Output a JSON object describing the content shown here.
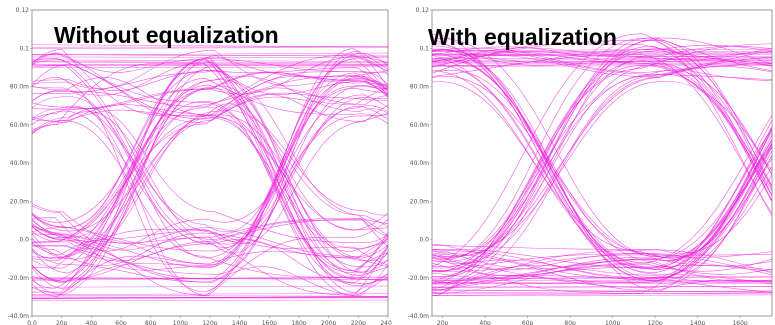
{
  "panels": [
    {
      "title": "Without equalization"
    },
    {
      "title": "With equalization"
    }
  ],
  "colors": {
    "trace": "#ee22dd",
    "frame": "#999999",
    "background": "#ffffff"
  },
  "chart_data": [
    {
      "type": "line",
      "chart_kind": "eye-diagram",
      "title": "Without equalization",
      "xlabel": "",
      "ylabel": "",
      "xlim": [
        0,
        240
      ],
      "ylim": [
        -40,
        120
      ],
      "y_ticks": [
        -40,
        -20,
        0,
        20,
        40,
        60,
        80,
        100,
        120
      ],
      "y_tick_labels": [
        "-40.0m",
        "-20.0m",
        "0.0",
        "20.0m",
        "40.0m",
        "60.0m",
        "80.0m",
        "0.1",
        "0.12"
      ],
      "x_ticks": [
        0,
        20,
        40,
        60,
        80,
        100,
        120,
        140,
        160,
        180,
        200,
        220,
        240
      ],
      "x_tick_labels": [
        "0.0",
        "20p",
        "40p",
        "60p",
        "80p",
        "100p",
        "120p",
        "140p",
        "160p",
        "180p",
        "200p",
        "220p",
        "240p"
      ],
      "unit_interval": 100,
      "crossings_x": [
        20,
        120,
        220
      ],
      "high_level": 95,
      "low_level": -25,
      "crossing_level": 35,
      "eye_open_top": 60,
      "eye_open_bottom": 15,
      "high_spread": [
        60,
        100
      ],
      "low_spread": [
        -30,
        15
      ],
      "grid": false
    },
    {
      "type": "line",
      "chart_kind": "eye-diagram",
      "title": "With equalization",
      "xlabel": "",
      "ylabel": "",
      "xlim": [
        15,
        175
      ],
      "ylim": [
        -40,
        120
      ],
      "y_ticks": [
        -40,
        -20,
        0,
        20,
        40,
        60,
        80,
        100,
        120
      ],
      "y_tick_labels": [
        "-40.0m",
        "-20.0m",
        "0.0",
        "20.0m",
        "40.0m",
        "60.0m",
        "80.0m",
        "0.1",
        "0.12"
      ],
      "x_ticks": [
        20,
        40,
        60,
        80,
        100,
        120,
        140,
        160
      ],
      "x_tick_labels": [
        "20p",
        "40p",
        "60p",
        "80p",
        "100p",
        "120p",
        "140p",
        "160p"
      ],
      "unit_interval": 100,
      "crossings_x": [
        18,
        118
      ],
      "high_level": 95,
      "low_level": -25,
      "crossing_level": 40,
      "eye_open_top": 85,
      "eye_open_bottom": -5,
      "high_spread": [
        82,
        108
      ],
      "low_spread": [
        -30,
        -2
      ],
      "grid": false
    }
  ]
}
